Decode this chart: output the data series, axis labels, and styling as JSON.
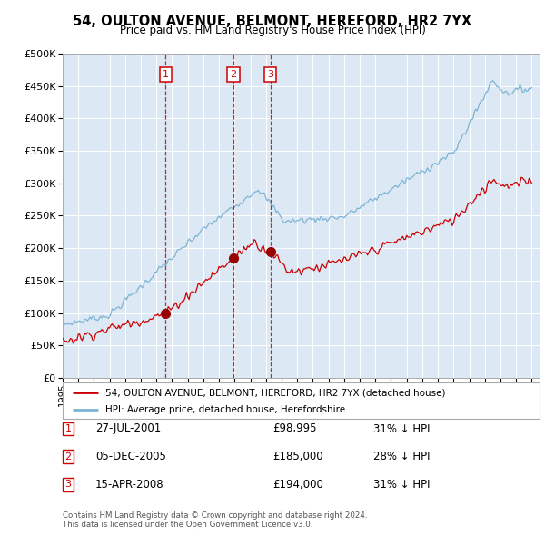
{
  "title": "54, OULTON AVENUE, BELMONT, HEREFORD, HR2 7YX",
  "subtitle": "Price paid vs. HM Land Registry's House Price Index (HPI)",
  "plot_bg_color": "#dce9f5",
  "ylim": [
    0,
    500000
  ],
  "yticks": [
    0,
    50000,
    100000,
    150000,
    200000,
    250000,
    300000,
    350000,
    400000,
    450000,
    500000
  ],
  "xlim_start": 1995.0,
  "xlim_end": 2025.5,
  "transactions": [
    {
      "num": 1,
      "date": "27-JUL-2001",
      "price": 98995,
      "price_str": "£98,995",
      "year": 2001.58,
      "hpi_pct": "31% ↓ HPI"
    },
    {
      "num": 2,
      "date": "05-DEC-2005",
      "price": 185000,
      "price_str": "£185,000",
      "year": 2005.92,
      "hpi_pct": "28% ↓ HPI"
    },
    {
      "num": 3,
      "date": "15-APR-2008",
      "price": 194000,
      "price_str": "£194,000",
      "year": 2008.29,
      "hpi_pct": "31% ↓ HPI"
    }
  ],
  "footer_line1": "Contains HM Land Registry data © Crown copyright and database right 2024.",
  "footer_line2": "This data is licensed under the Open Government Licence v3.0.",
  "legend_entries": [
    {
      "label": "54, OULTON AVENUE, BELMONT, HEREFORD, HR2 7YX (detached house)",
      "color": "#cc0000"
    },
    {
      "label": "HPI: Average price, detached house, Herefordshire",
      "color": "#7fb3d3"
    }
  ]
}
